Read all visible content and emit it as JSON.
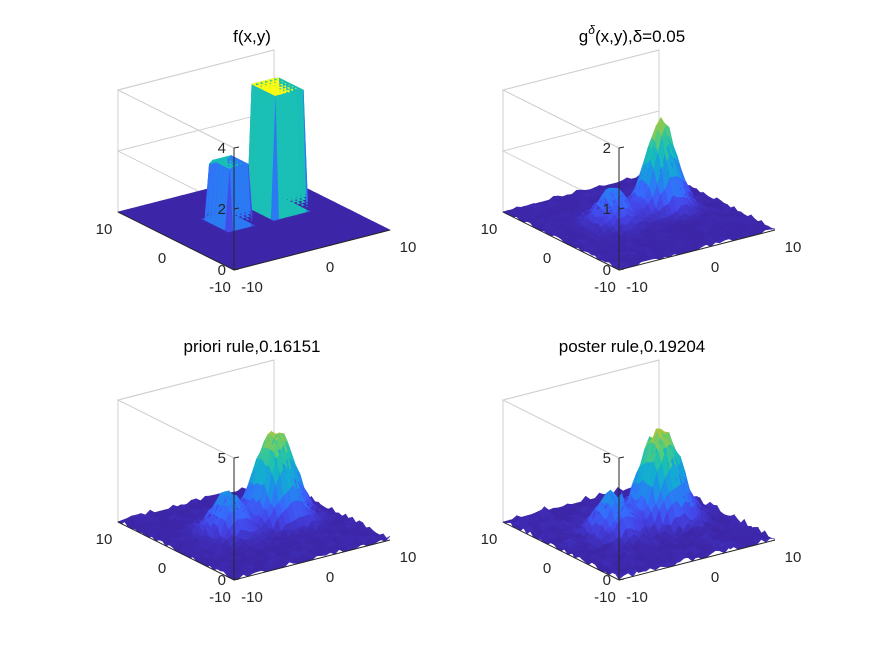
{
  "chart_data": [
    {
      "type": "surface",
      "title_prefix": "f(x,y)",
      "title_sup": "",
      "title_suffix": "",
      "z_ticks": [
        "0",
        "2",
        "4"
      ],
      "z_values": [
        0,
        2,
        4
      ],
      "zlim": [
        0,
        4
      ],
      "y_ticks": [
        "10",
        "0",
        "-10"
      ],
      "x_ticks": [
        "-10",
        "0",
        "10"
      ],
      "xlim": [
        -10,
        10
      ],
      "ylim": [
        -10,
        10
      ],
      "features": [
        {
          "shape": "box",
          "x_range": [
            -4,
            -1
          ],
          "y_range": [
            -1,
            3
          ],
          "height": 2
        },
        {
          "shape": "box",
          "x_range": [
            2,
            6
          ],
          "y_range": [
            -1,
            4
          ],
          "height": 4
        }
      ],
      "noise": 0
    },
    {
      "type": "surface",
      "title_prefix": "g",
      "title_sup": "δ",
      "title_suffix": "(x,y),δ=0.05",
      "z_ticks": [
        "0",
        "1",
        "2"
      ],
      "z_values": [
        0,
        1,
        2
      ],
      "zlim": [
        0,
        2
      ],
      "y_ticks": [
        "10",
        "0",
        "-10"
      ],
      "x_ticks": [
        "-10",
        "0",
        "10"
      ],
      "xlim": [
        -10,
        10
      ],
      "ylim": [
        -10,
        10
      ],
      "features": [
        {
          "shape": "bump",
          "center": [
            -2.5,
            1
          ],
          "height": 0.55
        },
        {
          "shape": "bump",
          "center": [
            4,
            1.5
          ],
          "height": 1.45
        }
      ],
      "noise": 0.05
    },
    {
      "type": "surface",
      "title_prefix": "priori rule,0.16151",
      "title_sup": "",
      "title_suffix": "",
      "z_ticks": [
        "0",
        "5"
      ],
      "z_values": [
        0,
        5
      ],
      "zlim": [
        0,
        5
      ],
      "y_ticks": [
        "10",
        "0",
        "-10"
      ],
      "x_ticks": [
        "-10",
        "0",
        "10"
      ],
      "xlim": [
        -10,
        10
      ],
      "ylim": [
        -10,
        10
      ],
      "features": [
        {
          "shape": "box",
          "x_range": [
            -4,
            -1
          ],
          "y_range": [
            -1,
            3
          ],
          "height": 2.3
        },
        {
          "shape": "box",
          "x_range": [
            2,
            6
          ],
          "y_range": [
            -1,
            4
          ],
          "height": 4.2
        }
      ],
      "noise": 0.15
    },
    {
      "type": "surface",
      "title_prefix": "poster rule,0.19204",
      "title_sup": "",
      "title_suffix": "",
      "z_ticks": [
        "0",
        "5"
      ],
      "z_values": [
        0,
        5
      ],
      "zlim": [
        0,
        5
      ],
      "y_ticks": [
        "10",
        "0",
        "-10"
      ],
      "x_ticks": [
        "-10",
        "0",
        "10"
      ],
      "xlim": [
        -10,
        10
      ],
      "ylim": [
        -10,
        10
      ],
      "features": [
        {
          "shape": "box",
          "x_range": [
            -4,
            -1
          ],
          "y_range": [
            -1,
            3
          ],
          "height": 2.3
        },
        {
          "shape": "box",
          "x_range": [
            2,
            6
          ],
          "y_range": [
            -1,
            4
          ],
          "height": 4.3
        }
      ],
      "noise": 0.2
    }
  ]
}
